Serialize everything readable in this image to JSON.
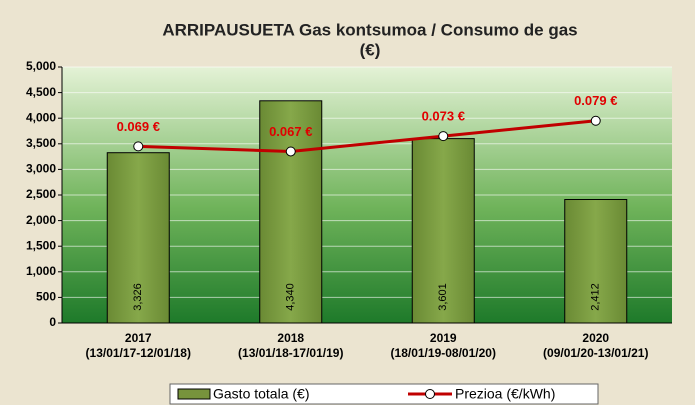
{
  "chart_data": {
    "type": "bar-line",
    "title": [
      "ARRIPAUSUETA Gas kontsumoa / Consumo de gas",
      "(€)"
    ],
    "categories": [
      [
        "2017",
        "(13/01/17-12/01/18)"
      ],
      [
        "2018",
        "(13/01/18-17/01/19)"
      ],
      [
        "2019",
        "(18/01/19-08/01/20)"
      ],
      [
        "2020",
        "(09/01/20-13/01/21)"
      ]
    ],
    "series": [
      {
        "name": "Gasto totala (€)",
        "type": "bar",
        "color": "#77933c",
        "values": [
          3326,
          4340,
          3601,
          2412
        ],
        "value_labels": [
          "3,326",
          "4,340",
          "3,601",
          "2,412"
        ]
      },
      {
        "name": "Prezioa (€/kWh)",
        "type": "line",
        "axis": "y2",
        "color": "#c00000",
        "values": [
          0.069,
          0.067,
          0.073,
          0.079
        ],
        "value_labels": [
          "0.069 €",
          "0.067 €",
          "0.073 €",
          "0.079 €"
        ]
      }
    ],
    "ylim": [
      0,
      5000
    ],
    "yticks": [
      0,
      500,
      {
        "value": 1000,
        "label": "1,000"
      },
      {
        "value": 1500,
        "label": "1,500"
      },
      {
        "value": 2000,
        "label": "2,000"
      },
      {
        "value": 2500,
        "label": "2,500"
      },
      {
        "value": 3000,
        "label": "3,000"
      },
      {
        "value": 3500,
        "label": "3,500"
      },
      {
        "value": 4000,
        "label": "4,000"
      },
      {
        "value": 4500,
        "label": "4,500"
      },
      {
        "value": 5000,
        "label": "5,000"
      }
    ],
    "y2lim": [
      0,
      0.1
    ],
    "grid": true
  }
}
